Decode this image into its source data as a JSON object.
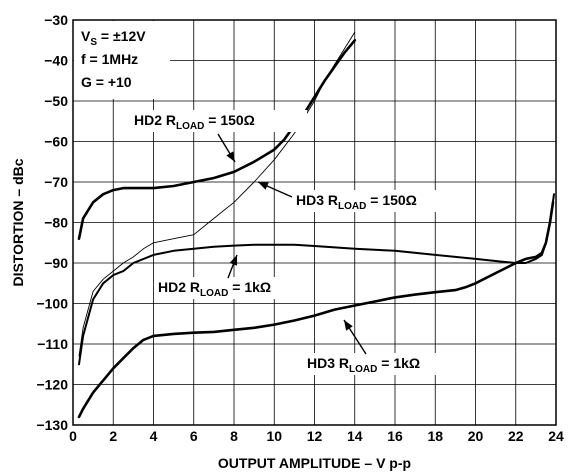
{
  "chart_data": {
    "type": "line",
    "title": "",
    "xlabel": "OUTPUT AMPLITUDE – V p-p",
    "ylabel": "DISTORTION – dBc",
    "xlim": [
      0,
      24
    ],
    "ylim": [
      -130,
      -30
    ],
    "xticks": [
      0,
      2,
      4,
      6,
      8,
      10,
      12,
      14,
      16,
      18,
      20,
      22,
      24
    ],
    "yticks": [
      -30,
      -40,
      -50,
      -60,
      -70,
      -80,
      -90,
      -100,
      -110,
      -120,
      -130
    ],
    "grid": true,
    "conditions": [
      {
        "main": "V",
        "sub": "S",
        "rest": " = ±12V"
      },
      {
        "main": "f = 1MHz",
        "sub": "",
        "rest": ""
      },
      {
        "main": "G = +10",
        "sub": "",
        "rest": ""
      }
    ],
    "series": [
      {
        "name": "HD2 RLOAD = 150Ω",
        "label": {
          "pre": "HD2 R",
          "sub": "LOAD",
          "post": " = 150Ω"
        },
        "weight": "thick",
        "points": [
          [
            0.3,
            -84
          ],
          [
            0.5,
            -79
          ],
          [
            1,
            -75
          ],
          [
            1.5,
            -73
          ],
          [
            2,
            -72
          ],
          [
            2.5,
            -71.5
          ],
          [
            3,
            -71.5
          ],
          [
            4,
            -71.5
          ],
          [
            5,
            -71
          ],
          [
            6,
            -70
          ],
          [
            7,
            -69
          ],
          [
            8,
            -67.5
          ],
          [
            9,
            -65
          ],
          [
            10,
            -62
          ],
          [
            10.5,
            -59.5
          ],
          [
            11,
            -56
          ],
          [
            11.5,
            -53
          ],
          [
            12,
            -49
          ],
          [
            12.5,
            -45
          ],
          [
            13,
            -41.5
          ],
          [
            13.5,
            -38
          ],
          [
            14,
            -35
          ]
        ]
      },
      {
        "name": "HD3 RLOAD = 150Ω",
        "label": {
          "pre": "HD3 R",
          "sub": "LOAD",
          "post": " = 150Ω"
        },
        "weight": "thin",
        "points": [
          [
            0.3,
            -113
          ],
          [
            0.5,
            -106
          ],
          [
            1,
            -97
          ],
          [
            1.5,
            -94
          ],
          [
            2,
            -92
          ],
          [
            2.5,
            -90
          ],
          [
            3,
            -88.5
          ],
          [
            3.5,
            -86.5
          ],
          [
            4,
            -85
          ],
          [
            5,
            -84
          ],
          [
            6,
            -83
          ],
          [
            7,
            -79
          ],
          [
            8,
            -75
          ],
          [
            9,
            -70
          ],
          [
            10,
            -64.5
          ],
          [
            11,
            -58
          ],
          [
            12,
            -50
          ],
          [
            12.5,
            -45
          ],
          [
            13,
            -41
          ],
          [
            13.5,
            -37
          ],
          [
            14,
            -33
          ]
        ]
      },
      {
        "name": "HD2 RLOAD = 1kΩ",
        "label": {
          "pre": "HD2 R",
          "sub": "LOAD",
          "post": " = 1kΩ"
        },
        "weight": "medium",
        "points": [
          [
            0.3,
            -115
          ],
          [
            0.5,
            -108
          ],
          [
            1,
            -99
          ],
          [
            1.5,
            -95
          ],
          [
            2,
            -93
          ],
          [
            2.5,
            -92
          ],
          [
            3,
            -90
          ],
          [
            4,
            -88
          ],
          [
            5,
            -87
          ],
          [
            6,
            -86.5
          ],
          [
            7,
            -86
          ],
          [
            8,
            -85.7
          ],
          [
            9,
            -85.5
          ],
          [
            10,
            -85.5
          ],
          [
            11,
            -85.5
          ],
          [
            12,
            -85.8
          ],
          [
            14,
            -86.5
          ],
          [
            16,
            -87
          ],
          [
            18,
            -88
          ],
          [
            20,
            -89
          ],
          [
            21,
            -89.5
          ],
          [
            22,
            -90
          ],
          [
            22.5,
            -90
          ],
          [
            23,
            -89
          ],
          [
            23.3,
            -88
          ],
          [
            23.5,
            -85
          ],
          [
            23.7,
            -80
          ],
          [
            23.9,
            -73
          ]
        ]
      },
      {
        "name": "HD3 RLOAD = 1kΩ",
        "label": {
          "pre": "HD3 R",
          "sub": "LOAD",
          "post": " = 1kΩ"
        },
        "weight": "thick",
        "points": [
          [
            0.3,
            -128
          ],
          [
            0.5,
            -126
          ],
          [
            1,
            -122
          ],
          [
            1.5,
            -119
          ],
          [
            2,
            -116
          ],
          [
            2.5,
            -113.5
          ],
          [
            3,
            -111
          ],
          [
            3.5,
            -109
          ],
          [
            4,
            -108
          ],
          [
            5,
            -107.5
          ],
          [
            6,
            -107.2
          ],
          [
            7,
            -107
          ],
          [
            8,
            -106.5
          ],
          [
            9,
            -106
          ],
          [
            10,
            -105.2
          ],
          [
            11,
            -104.2
          ],
          [
            12,
            -103
          ],
          [
            13,
            -101.5
          ],
          [
            14,
            -100.5
          ],
          [
            15,
            -99.5
          ],
          [
            16,
            -98.5
          ],
          [
            17,
            -97.8
          ],
          [
            18,
            -97.2
          ],
          [
            19,
            -96.7
          ],
          [
            19.5,
            -96
          ],
          [
            20,
            -95
          ],
          [
            21,
            -92.5
          ],
          [
            22,
            -90
          ],
          [
            22.5,
            -89
          ],
          [
            23,
            -88.5
          ],
          [
            23.3,
            -87.5
          ],
          [
            23.5,
            -85
          ],
          [
            23.7,
            -80
          ],
          [
            23.85,
            -75
          ]
        ]
      }
    ]
  }
}
